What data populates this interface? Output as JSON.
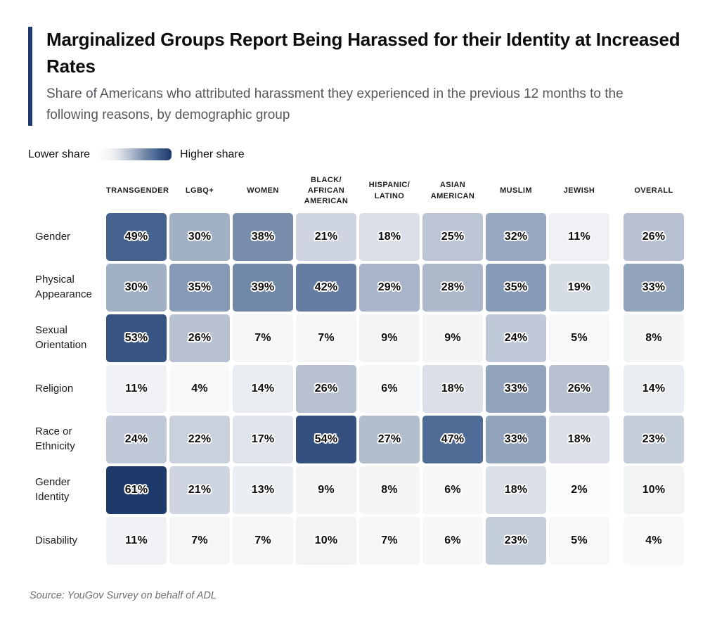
{
  "header": {
    "title": "Marginalized Groups Report Being Harassed for their Identity at Increased Rates",
    "subtitle": "Share of Americans who attributed harassment they experienced in the previous 12 months to the following reasons, by demographic group"
  },
  "legend": {
    "low_label": "Lower share",
    "high_label": "Higher share"
  },
  "footer": {
    "source": "Source: YouGov Survey on behalf of ADL"
  },
  "colors": {
    "accent_bar": "#1c3a6e",
    "title_text": "#0d0d0d",
    "subtitle_text": "#54585c",
    "source_text": "#6e6e6e",
    "scale_low": "#fdfdfe",
    "scale_high": "#1e3a6b"
  },
  "chart_data": {
    "type": "heatmap",
    "title": "Marginalized Groups Report Being Harassed for their Identity at Increased Rates",
    "subtitle": "Share of Americans who attributed harassment they experienced in the previous 12 months to the following reasons, by demographic group",
    "unit": "%",
    "columns": [
      "TRANSGENDER",
      "LGBQ+",
      "WOMEN",
      "BLACK/ AFRICAN AMERICAN",
      "HISPANIC/ LATINO",
      "ASIAN AMERICAN",
      "MUSLIM",
      "JEWISH",
      "OVERALL"
    ],
    "rows": [
      "Gender",
      "Physical Appearance",
      "Sexual Orientation",
      "Religion",
      "Race or Ethnicity",
      "Gender Identity",
      "Disability"
    ],
    "values": [
      [
        49,
        30,
        38,
        21,
        18,
        25,
        32,
        11,
        26
      ],
      [
        30,
        35,
        39,
        42,
        29,
        28,
        35,
        19,
        33
      ],
      [
        53,
        26,
        7,
        7,
        9,
        9,
        24,
        5,
        8
      ],
      [
        11,
        4,
        14,
        26,
        6,
        18,
        33,
        26,
        14
      ],
      [
        24,
        22,
        17,
        54,
        27,
        47,
        33,
        18,
        23
      ],
      [
        61,
        21,
        13,
        9,
        8,
        6,
        18,
        2,
        10
      ],
      [
        11,
        7,
        7,
        10,
        7,
        6,
        23,
        5,
        4
      ]
    ],
    "value_range": [
      0,
      61
    ],
    "legend_position": "top-left",
    "color_stops": [
      {
        "t": 0.0,
        "color": "#fdfdfe"
      },
      {
        "t": 0.15,
        "color": "#f3f4f6"
      },
      {
        "t": 0.25,
        "color": "#e7eaef"
      },
      {
        "t": 0.35,
        "color": "#ccd3df"
      },
      {
        "t": 0.45,
        "color": "#b0bccd"
      },
      {
        "t": 0.55,
        "color": "#8fa0ba"
      },
      {
        "t": 0.65,
        "color": "#6f85a5"
      },
      {
        "t": 0.75,
        "color": "#54719c"
      },
      {
        "t": 0.85,
        "color": "#3a5784"
      },
      {
        "t": 1.0,
        "color": "#1e3a6b"
      }
    ]
  }
}
